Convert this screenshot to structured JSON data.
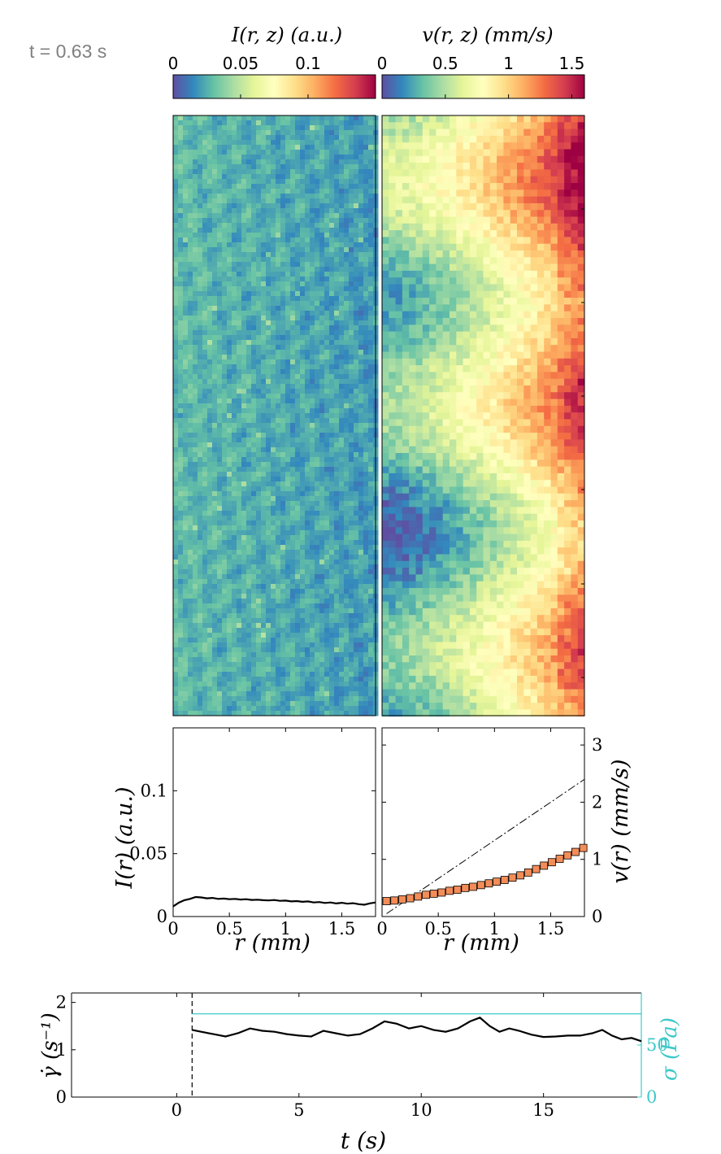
{
  "time_label": "t = 0.63 s",
  "colors": {
    "frame": "#000000",
    "markers_fill": "#f38d58",
    "markers_edge": "#000000",
    "trace": "#000000",
    "stress_axis": "#3ec9c9",
    "label_gray": "#808080"
  },
  "chart_data": [
    {
      "id": "intensity_colorbar",
      "type": "heatmap",
      "title": "I(r, z) (a.u.)",
      "colormap": "spectral-reversed",
      "range": [
        0,
        0.15
      ],
      "ticks": [
        0,
        0.05,
        0.1
      ],
      "tick_labels": [
        "0",
        "0.05",
        "0.1"
      ]
    },
    {
      "id": "velocity_colorbar",
      "type": "heatmap",
      "title": "v(r, z) (mm/s)",
      "colormap": "spectral-reversed",
      "range": [
        0,
        1.6
      ],
      "ticks": [
        0,
        0.5,
        1,
        1.5
      ],
      "tick_labels": [
        "0",
        "0.5",
        "1",
        "1.5"
      ]
    },
    {
      "id": "intensity_map",
      "type": "heatmap",
      "description_units": "a.u.",
      "r_range": [
        0,
        1.8
      ],
      "mean_level": 0.015,
      "value_range": [
        0.005,
        0.06
      ]
    },
    {
      "id": "velocity_map",
      "type": "heatmap",
      "description_units": "mm/s",
      "r_range": [
        0,
        1.8
      ],
      "value_range": [
        0,
        1.6
      ]
    },
    {
      "id": "intensity_profile",
      "type": "line",
      "xlabel": "r (mm)",
      "ylabel": "I(r) (a.u.)",
      "xlim": [
        0,
        1.8
      ],
      "ylim": [
        0,
        0.15
      ],
      "xticks": [
        0,
        0.5,
        1,
        1.5
      ],
      "xtick_labels": [
        "0",
        "0.5",
        "1",
        "1.5"
      ],
      "yticks": [
        0,
        0.05,
        0.1
      ],
      "ytick_labels": [
        "0",
        "0.05",
        "0.1"
      ],
      "x": [
        0,
        0.05,
        0.1,
        0.15,
        0.2,
        0.25,
        0.3,
        0.35,
        0.4,
        0.45,
        0.5,
        0.55,
        0.6,
        0.65,
        0.7,
        0.75,
        0.8,
        0.85,
        0.9,
        0.95,
        1.0,
        1.05,
        1.1,
        1.15,
        1.2,
        1.25,
        1.3,
        1.35,
        1.4,
        1.45,
        1.5,
        1.55,
        1.6,
        1.65,
        1.7,
        1.75,
        1.8
      ],
      "y": [
        0.008,
        0.011,
        0.013,
        0.014,
        0.0155,
        0.0152,
        0.0145,
        0.0148,
        0.014,
        0.0143,
        0.0138,
        0.014,
        0.0135,
        0.0138,
        0.0132,
        0.0134,
        0.013,
        0.0128,
        0.0131,
        0.0125,
        0.0127,
        0.012,
        0.0123,
        0.0117,
        0.012,
        0.0112,
        0.0115,
        0.0108,
        0.0112,
        0.0104,
        0.0109,
        0.0102,
        0.0106,
        0.0098,
        0.0094,
        0.0105,
        0.0112
      ]
    },
    {
      "id": "velocity_profile",
      "type": "scatter",
      "xlabel": "r (mm)",
      "ylabel": "v(r) (mm/s)",
      "xlim": [
        0,
        1.8
      ],
      "ylim": [
        0,
        3.3
      ],
      "xticks": [
        0,
        0.5,
        1,
        1.5
      ],
      "xtick_labels": [
        "0",
        "0.5",
        "1",
        "1.5"
      ],
      "yticks": [
        0,
        1,
        2,
        3
      ],
      "ytick_labels": [
        "0",
        "1",
        "2",
        "3"
      ],
      "y_axis_side": "right",
      "x": [
        0.04,
        0.11,
        0.18,
        0.25,
        0.32,
        0.39,
        0.46,
        0.53,
        0.6,
        0.67,
        0.74,
        0.81,
        0.88,
        0.95,
        1.02,
        1.09,
        1.16,
        1.23,
        1.3,
        1.37,
        1.44,
        1.51,
        1.58,
        1.65,
        1.72,
        1.79
      ],
      "y": [
        0.27,
        0.28,
        0.3,
        0.32,
        0.35,
        0.38,
        0.4,
        0.42,
        0.45,
        0.47,
        0.5,
        0.52,
        0.55,
        0.58,
        0.61,
        0.64,
        0.68,
        0.72,
        0.77,
        0.83,
        0.89,
        0.95,
        1.01,
        1.07,
        1.13,
        1.2
      ],
      "reference_line": {
        "style": "dash-dot",
        "x": [
          0.04,
          1.8
        ],
        "y": [
          0.05,
          2.4
        ]
      }
    },
    {
      "id": "shear_rate_history",
      "type": "line",
      "xlabel": "t (s)",
      "ylabel": "γ̇ (s⁻¹)",
      "y2label": "σ (Pa)",
      "xlim": [
        -4.3,
        19
      ],
      "ylim": [
        0,
        2.2
      ],
      "xticks": [
        0,
        5,
        10,
        15
      ],
      "xtick_labels": [
        "0",
        "5",
        "10",
        "15"
      ],
      "yticks": [
        0,
        1,
        2
      ],
      "ytick_labels": [
        "0",
        "1",
        "2"
      ],
      "y2ticks": [
        0,
        50
      ],
      "y2tick_labels": [
        "0",
        "50"
      ],
      "y2lim": [
        0,
        100
      ],
      "current_time": 0.63,
      "x": [
        0.63,
        1.0,
        1.5,
        2.0,
        2.5,
        3.0,
        3.5,
        4.0,
        4.5,
        5.0,
        5.5,
        6.0,
        6.5,
        7.0,
        7.5,
        8.0,
        8.5,
        9.0,
        9.5,
        10.0,
        10.5,
        11.0,
        11.5,
        12.0,
        12.4,
        12.8,
        13.2,
        13.6,
        14.0,
        14.5,
        15.0,
        15.5,
        16.0,
        16.5,
        17.0,
        17.4,
        17.8,
        18.2,
        18.6,
        19.0
      ],
      "y": [
        1.42,
        1.38,
        1.33,
        1.28,
        1.35,
        1.45,
        1.4,
        1.38,
        1.33,
        1.3,
        1.28,
        1.4,
        1.35,
        1.3,
        1.33,
        1.45,
        1.6,
        1.55,
        1.45,
        1.5,
        1.42,
        1.38,
        1.45,
        1.6,
        1.68,
        1.5,
        1.38,
        1.45,
        1.4,
        1.32,
        1.27,
        1.28,
        1.3,
        1.3,
        1.35,
        1.42,
        1.3,
        1.22,
        1.25,
        1.18
      ],
      "stress_level": 80
    }
  ]
}
